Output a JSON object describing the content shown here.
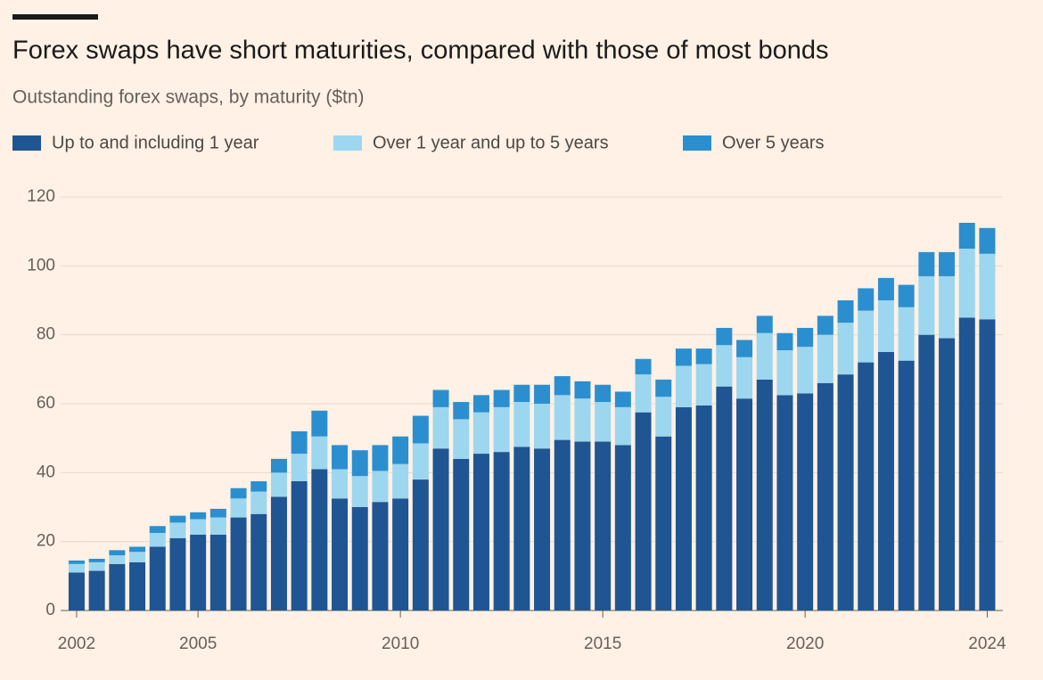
{
  "chart_data": {
    "type": "stacked_bar",
    "title": "Forex swaps have short maturities, compared with those of most bonds",
    "subtitle": "Outstanding forex swaps, by maturity ($tn)",
    "categories": [
      "2002",
      null,
      null,
      null,
      null,
      null,
      "2005",
      null,
      null,
      null,
      null,
      null,
      null,
      null,
      null,
      null,
      "2010",
      null,
      null,
      null,
      null,
      null,
      null,
      null,
      null,
      null,
      "2015",
      null,
      null,
      null,
      null,
      null,
      null,
      null,
      null,
      null,
      "2020",
      null,
      null,
      null,
      null,
      null,
      null,
      null,
      null,
      "2024"
    ],
    "series": [
      {
        "name": "Up to and including 1 year",
        "color": "#1f5592",
        "values": [
          11,
          11.5,
          13.5,
          14,
          18.5,
          21,
          22,
          22,
          27,
          28,
          33,
          37.5,
          41,
          32.5,
          30,
          31.5,
          32.5,
          38,
          47,
          44,
          45.5,
          46,
          47.5,
          47,
          49.5,
          49,
          49,
          48,
          57.5,
          50.5,
          59,
          59.5,
          65,
          61.5,
          67,
          62.5,
          63,
          66,
          68.5,
          72,
          75,
          72.5,
          80,
          79,
          85,
          84.5
        ]
      },
      {
        "name": "Over 1 year and up to 5 years",
        "color": "#9dd6ef",
        "values": [
          2.5,
          2.5,
          2.5,
          3,
          4,
          4.5,
          4.5,
          5,
          5.5,
          6.5,
          7,
          8,
          9.5,
          8.5,
          9,
          9,
          10,
          10.5,
          12,
          11.5,
          12,
          13,
          13,
          13,
          13,
          12.5,
          11.5,
          11,
          11,
          11.5,
          12,
          12,
          12,
          12,
          13.5,
          13,
          13.5,
          14,
          15,
          15,
          15,
          15.5,
          17,
          18,
          20,
          19
        ]
      },
      {
        "name": "Over 5 years",
        "color": "#2b8fcf",
        "values": [
          1,
          1,
          1.5,
          1.5,
          2,
          2,
          2,
          2.5,
          3,
          3,
          4,
          6.5,
          7.5,
          7,
          7.5,
          7.5,
          8,
          8,
          5,
          5,
          5,
          5,
          5,
          5.5,
          5.5,
          5,
          5,
          4.5,
          4.5,
          5,
          5,
          4.5,
          5,
          5,
          5,
          5,
          5.5,
          5.5,
          6.5,
          6.5,
          6.5,
          6.5,
          7,
          7,
          7.5,
          7.5
        ]
      }
    ],
    "ylim": [
      0,
      120
    ],
    "yticks": [
      0,
      20,
      40,
      60,
      80,
      100,
      120
    ],
    "grid": true
  }
}
